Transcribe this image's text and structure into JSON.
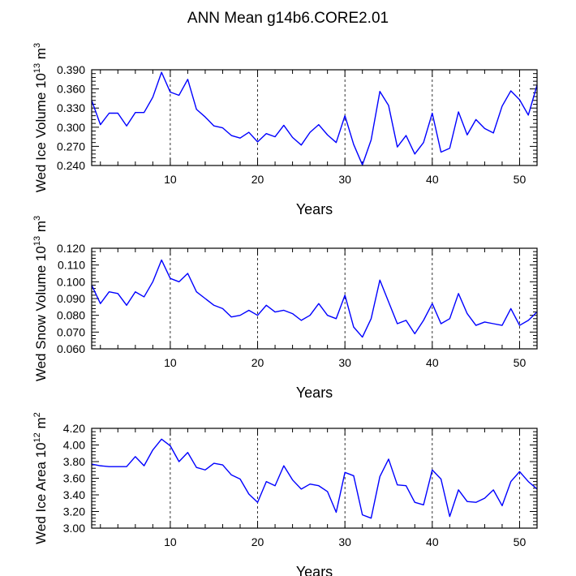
{
  "figure": {
    "title": "ANN Mean g14b6.CORE2.01"
  },
  "colors": {
    "line": "#0000ff",
    "axes": "#000000",
    "grid": "#000000"
  },
  "chart_data": [
    {
      "type": "line",
      "ylabel_parts": [
        "Wed Ice Volume 10",
        "13",
        " m",
        "3"
      ],
      "xlabel": "Years",
      "xlim": [
        1,
        52
      ],
      "ylim": [
        0.24,
        0.39
      ],
      "yticks": [
        "0.240",
        "0.270",
        "0.300",
        "0.330",
        "0.360",
        "0.390"
      ],
      "xticks": [
        "10",
        "20",
        "30",
        "40",
        "50"
      ],
      "grid_x": [
        10,
        20,
        30,
        40,
        50
      ],
      "x": [
        1,
        2,
        3,
        4,
        5,
        6,
        7,
        8,
        9,
        10,
        11,
        12,
        13,
        14,
        15,
        16,
        17,
        18,
        19,
        20,
        21,
        22,
        23,
        24,
        25,
        26,
        27,
        28,
        29,
        30,
        31,
        32,
        33,
        34,
        35,
        36,
        37,
        38,
        39,
        40,
        41,
        42,
        43,
        44,
        45,
        46,
        47,
        48,
        49,
        50,
        51,
        52
      ],
      "values": [
        0.342,
        0.304,
        0.322,
        0.322,
        0.302,
        0.323,
        0.323,
        0.347,
        0.386,
        0.355,
        0.35,
        0.375,
        0.328,
        0.316,
        0.302,
        0.299,
        0.287,
        0.283,
        0.292,
        0.277,
        0.29,
        0.285,
        0.303,
        0.284,
        0.272,
        0.292,
        0.304,
        0.288,
        0.276,
        0.318,
        0.273,
        0.241,
        0.28,
        0.356,
        0.334,
        0.269,
        0.287,
        0.258,
        0.276,
        0.322,
        0.261,
        0.267,
        0.324,
        0.288,
        0.312,
        0.298,
        0.291,
        0.333,
        0.357,
        0.343,
        0.319,
        0.366
      ]
    },
    {
      "type": "line",
      "ylabel_parts": [
        "Wed Snow Volume 10",
        "13",
        " m",
        "3"
      ],
      "xlabel": "Years",
      "xlim": [
        1,
        52
      ],
      "ylim": [
        0.06,
        0.12
      ],
      "yticks": [
        "0.060",
        "0.070",
        "0.080",
        "0.090",
        "0.100",
        "0.110",
        "0.120"
      ],
      "xticks": [
        "10",
        "20",
        "30",
        "40",
        "50"
      ],
      "grid_x": [
        10,
        20,
        30,
        40,
        50
      ],
      "x": [
        1,
        2,
        3,
        4,
        5,
        6,
        7,
        8,
        9,
        10,
        11,
        12,
        13,
        14,
        15,
        16,
        17,
        18,
        19,
        20,
        21,
        22,
        23,
        24,
        25,
        26,
        27,
        28,
        29,
        30,
        31,
        32,
        33,
        34,
        35,
        36,
        37,
        38,
        39,
        40,
        41,
        42,
        43,
        44,
        45,
        46,
        47,
        48,
        49,
        50,
        51,
        52
      ],
      "values": [
        0.098,
        0.087,
        0.094,
        0.093,
        0.086,
        0.094,
        0.091,
        0.1,
        0.113,
        0.102,
        0.1,
        0.105,
        0.094,
        0.09,
        0.086,
        0.084,
        0.079,
        0.08,
        0.083,
        0.08,
        0.086,
        0.082,
        0.083,
        0.081,
        0.077,
        0.08,
        0.087,
        0.08,
        0.078,
        0.092,
        0.073,
        0.067,
        0.078,
        0.101,
        0.088,
        0.075,
        0.077,
        0.069,
        0.077,
        0.087,
        0.075,
        0.078,
        0.093,
        0.081,
        0.074,
        0.076,
        0.075,
        0.074,
        0.084,
        0.074,
        0.077,
        0.082
      ]
    },
    {
      "type": "line",
      "ylabel_parts": [
        "Wed Ice Area 10",
        "12",
        " m",
        "2"
      ],
      "xlabel": "Years",
      "xlim": [
        1,
        52
      ],
      "ylim": [
        3.0,
        4.2
      ],
      "yticks": [
        "3.00",
        "3.20",
        "3.40",
        "3.60",
        "3.80",
        "4.00",
        "4.20"
      ],
      "xticks": [
        "10",
        "20",
        "30",
        "40",
        "50"
      ],
      "grid_x": [
        10,
        20,
        30,
        40,
        50
      ],
      "x": [
        1,
        2,
        3,
        4,
        5,
        6,
        7,
        8,
        9,
        10,
        11,
        12,
        13,
        14,
        15,
        16,
        17,
        18,
        19,
        20,
        21,
        22,
        23,
        24,
        25,
        26,
        27,
        28,
        29,
        30,
        31,
        32,
        33,
        34,
        35,
        36,
        37,
        38,
        39,
        40,
        41,
        42,
        43,
        44,
        45,
        46,
        47,
        48,
        49,
        50,
        51,
        52
      ],
      "values": [
        3.77,
        3.75,
        3.74,
        3.74,
        3.74,
        3.86,
        3.75,
        3.94,
        4.07,
        3.99,
        3.8,
        3.91,
        3.73,
        3.7,
        3.78,
        3.76,
        3.64,
        3.59,
        3.41,
        3.31,
        3.56,
        3.51,
        3.75,
        3.58,
        3.47,
        3.53,
        3.51,
        3.44,
        3.19,
        3.67,
        3.63,
        3.16,
        3.12,
        3.62,
        3.83,
        3.52,
        3.51,
        3.31,
        3.28,
        3.7,
        3.59,
        3.14,
        3.46,
        3.32,
        3.31,
        3.36,
        3.46,
        3.27,
        3.56,
        3.68,
        3.56,
        3.47
      ]
    }
  ]
}
